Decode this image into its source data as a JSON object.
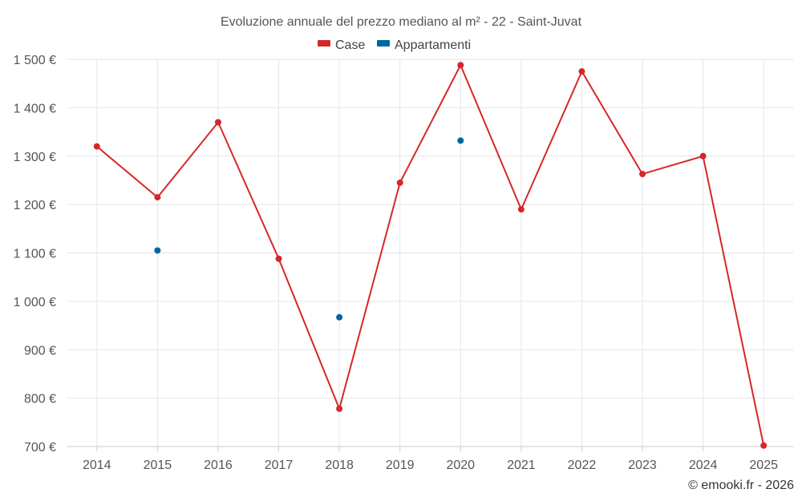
{
  "chart_data": {
    "type": "line",
    "title": "Evoluzione annuale del prezzo mediano al m² - 22 - Saint-Juvat",
    "categories": [
      "2014",
      "2015",
      "2016",
      "2017",
      "2018",
      "2019",
      "2020",
      "2021",
      "2022",
      "2023",
      "2024",
      "2025"
    ],
    "series": [
      {
        "name": "Case",
        "color": "#d62728",
        "values": [
          1320,
          1215,
          1370,
          1088,
          778,
          1245,
          1488,
          1190,
          1475,
          1263,
          1300,
          702
        ]
      },
      {
        "name": "Appartamenti",
        "color": "#0066a0",
        "values": [
          null,
          1105,
          null,
          null,
          967,
          null,
          1332,
          null,
          null,
          null,
          null,
          null
        ]
      }
    ],
    "ylim": [
      700,
      1500
    ],
    "yticks": [
      700,
      800,
      900,
      1000,
      1100,
      1200,
      1300,
      1400,
      1500
    ],
    "ytick_labels": [
      "700 €",
      "800 €",
      "900 €",
      "1 000 €",
      "1 100 €",
      "1 200 €",
      "1 300 €",
      "1 400 €",
      "1 500 €"
    ],
    "legend_position": "top-center",
    "grid": true
  },
  "credit": "© emooki.fr - 2026"
}
